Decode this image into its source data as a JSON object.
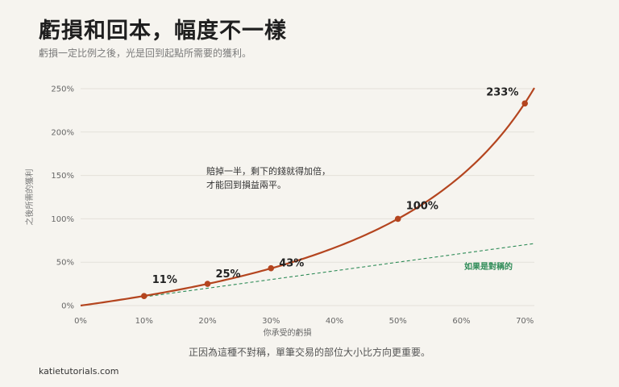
{
  "header": {
    "title": "虧損和回本，幅度不一樣",
    "subtitle": "虧損一定比例之後，光是回到起點所需要的獲利。"
  },
  "footer": {
    "note": "正因為這種不對稱，單筆交易的部位大小比方向更重要。",
    "site": "katietutorials.com"
  },
  "colors": {
    "curve": "#b4451f",
    "symmetric": "#2e8b57",
    "background": "#f6f4ef"
  },
  "chart_data": {
    "type": "line",
    "xlabel": "你承受的虧損",
    "ylabel": "之後所需的獲利",
    "x_ticks": [
      "0%",
      "10%",
      "20%",
      "30%",
      "40%",
      "50%",
      "60%",
      "70%"
    ],
    "y_ticks": [
      "0%",
      "50%",
      "100%",
      "150%",
      "200%",
      "250%"
    ],
    "xlim": [
      0,
      71.5
    ],
    "ylim": [
      0,
      250
    ],
    "grid": true,
    "series": [
      {
        "key": "required_gain",
        "formula": "x/(100-x)*100",
        "x_range": [
          0,
          71.5
        ]
      },
      {
        "key": "symmetric",
        "name": "如果是對稱的",
        "formula": "x",
        "x_range": [
          10,
          71.5
        ]
      }
    ],
    "points": [
      {
        "x": 10,
        "y": 11,
        "label": "11%"
      },
      {
        "x": 20,
        "y": 25,
        "label": "25%"
      },
      {
        "x": 30,
        "y": 43,
        "label": "43%"
      },
      {
        "x": 50,
        "y": 100,
        "label": "100%"
      },
      {
        "x": 70,
        "y": 233,
        "label": "233%"
      }
    ],
    "annotation": {
      "lines": [
        "賠掉一半，剩下的錢就得加倍，",
        "才能回到損益兩平。"
      ]
    }
  }
}
